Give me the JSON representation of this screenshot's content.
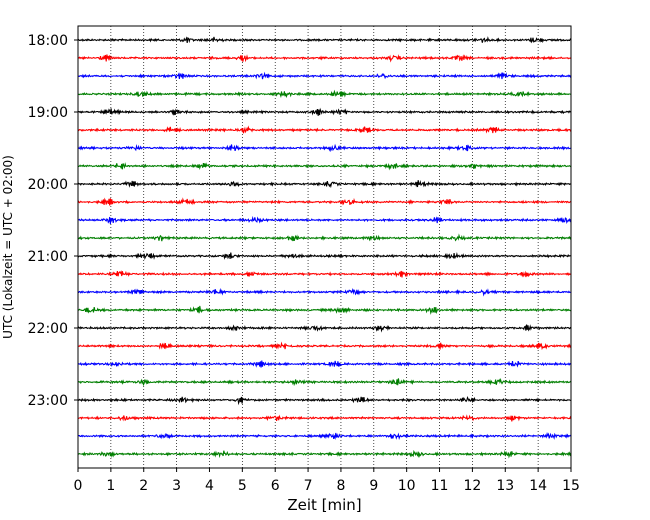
{
  "chart_data": {
    "type": "line",
    "chart_kind": "seismic helicorder",
    "xlabel": "Zeit  [min]",
    "ylabel": "UTC (Lokalzeit = UTC + 02:00)",
    "xlim": [
      0,
      15
    ],
    "x_ticks": [
      0,
      1,
      2,
      3,
      4,
      5,
      6,
      7,
      8,
      9,
      10,
      11,
      12,
      13,
      14,
      15
    ],
    "x_tick_labels": [
      "0",
      "1",
      "2",
      "3",
      "4",
      "5",
      "6",
      "7",
      "8",
      "9",
      "10",
      "11",
      "12",
      "13",
      "14",
      "15"
    ],
    "y_tick_labels": [
      "18:00",
      "19:00",
      "20:00",
      "21:00",
      "22:00",
      "23:00"
    ],
    "y_tick_rows": [
      0,
      4,
      8,
      12,
      16,
      20
    ],
    "grid": "vertical dotted at each minute",
    "trace_minutes_per_row": 15,
    "row_starts": [
      "18:00",
      "18:15",
      "18:30",
      "18:45",
      "19:00",
      "19:15",
      "19:30",
      "19:45",
      "20:00",
      "20:15",
      "20:30",
      "20:45",
      "21:00",
      "21:15",
      "21:30",
      "21:45",
      "22:00",
      "22:15",
      "22:30",
      "22:45",
      "23:00",
      "23:15",
      "23:30",
      "23:45"
    ],
    "row_colors": [
      "#000000",
      "#ff0000",
      "#0000ff",
      "#007f00"
    ],
    "series": [
      {
        "row": 0,
        "bursts": [
          3.3,
          4.2,
          12.3,
          13.9
        ]
      },
      {
        "row": 1,
        "bursts": [
          0.8,
          5.0,
          9.6,
          11.6
        ]
      },
      {
        "row": 2,
        "bursts": [
          3.1,
          5.6,
          9.3,
          12.9
        ]
      },
      {
        "row": 3,
        "bursts": [
          1.9,
          6.3,
          7.9,
          13.4
        ]
      },
      {
        "row": 4,
        "bursts": [
          1.0,
          3.0,
          7.3,
          8.0
        ]
      },
      {
        "row": 5,
        "bursts": [
          2.8,
          5.1,
          8.7,
          12.6
        ]
      },
      {
        "row": 6,
        "bursts": [
          1.7,
          4.7,
          7.8,
          11.8
        ]
      },
      {
        "row": 7,
        "bursts": [
          1.3,
          3.8,
          9.6,
          12.0
        ]
      },
      {
        "row": 8,
        "bursts": [
          1.6,
          4.7,
          7.7,
          10.4
        ]
      },
      {
        "row": 9,
        "bursts": [
          0.9,
          3.3,
          8.2,
          11.2
        ]
      },
      {
        "row": 10,
        "bursts": [
          1.0,
          5.4,
          10.9,
          14.8
        ]
      },
      {
        "row": 11,
        "bursts": [
          2.5,
          6.5,
          9.0,
          11.5
        ]
      },
      {
        "row": 12,
        "bursts": [
          2.1,
          4.6,
          6.5,
          11.4
        ]
      },
      {
        "row": 13,
        "bursts": [
          1.3,
          5.3,
          9.8,
          13.6
        ]
      },
      {
        "row": 14,
        "bursts": [
          1.8,
          4.2,
          8.4,
          12.3
        ]
      },
      {
        "row": 15,
        "bursts": [
          0.4,
          3.7,
          8.0,
          10.8
        ]
      },
      {
        "row": 16,
        "bursts": [
          4.8,
          7.2,
          9.2,
          13.7
        ]
      },
      {
        "row": 17,
        "bursts": [
          2.6,
          6.3,
          11.0,
          14.1
        ]
      },
      {
        "row": 18,
        "bursts": [
          1.2,
          5.5,
          7.8,
          13.3
        ]
      },
      {
        "row": 19,
        "bursts": [
          2.0,
          6.7,
          9.7,
          12.8
        ]
      },
      {
        "row": 20,
        "bursts": [
          3.2,
          4.9,
          8.6,
          11.8
        ]
      },
      {
        "row": 21,
        "bursts": [
          1.4,
          6.0,
          11.9,
          13.2
        ]
      },
      {
        "row": 22,
        "bursts": [
          2.6,
          7.8,
          9.6,
          14.4
        ]
      },
      {
        "row": 23,
        "bursts": [
          0.9,
          4.4,
          10.3,
          13.1
        ]
      }
    ]
  }
}
